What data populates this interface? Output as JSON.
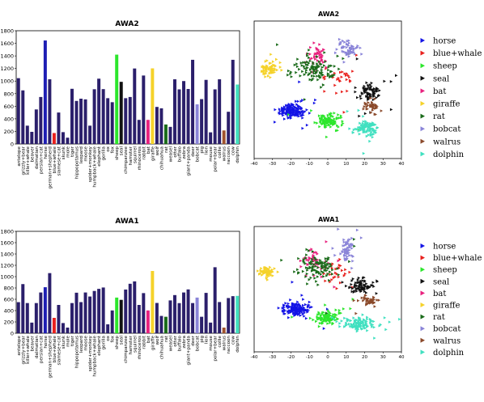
{
  "chart_data": [
    {
      "type": "bar",
      "title": "AWA2",
      "ylim": [
        0,
        1800
      ],
      "yticks": [
        0,
        200,
        400,
        600,
        800,
        1000,
        1200,
        1400,
        1600,
        1800
      ],
      "xlabel": "",
      "ylabel": "",
      "grid": false,
      "categories": [
        "antelope",
        "grizzly+bear",
        "killer+whale",
        "beaver",
        "dalmatian",
        "persian+cat",
        "horse",
        "german+shepherd",
        "blue+whale",
        "siamese+cat",
        "skunk",
        "mole",
        "tiger",
        "hippopotamus",
        "leopard",
        "moose",
        "spider+monkey",
        "humpback+whale",
        "elephant",
        "gorilla",
        "ox",
        "fox",
        "sheep",
        "seal",
        "chimpanzee",
        "hamster",
        "squirrel",
        "rhinoceros",
        "rabbit",
        "bat",
        "giraffe",
        "wolf",
        "chihuahua",
        "rat",
        "weasel",
        "otter",
        "buffalo",
        "zebra",
        "giant+panda",
        "deer",
        "bobcat",
        "pig",
        "lion",
        "mouse",
        "polar+bear",
        "collie",
        "walrus",
        "raccoon",
        "cow",
        "dolphin"
      ],
      "values": [
        1046,
        852,
        291,
        193,
        549,
        747,
        1645,
        1028,
        174,
        500,
        188,
        100,
        877,
        684,
        720,
        709,
        291,
        870,
        1038,
        872,
        728,
        664,
        1420,
        988,
        728,
        747,
        1200,
        383,
        1088,
        383,
        1202,
        589,
        567,
        310,
        272,
        1028,
        868,
        1000,
        874,
        1338,
        630,
        713,
        1019,
        185,
        868,
        1028,
        215,
        512,
        1338,
        945
      ],
      "bar_colors": [
        "#2b1f6b",
        "#2b1f6b",
        "#2b1f6b",
        "#2b1f6b",
        "#2b1f6b",
        "#2b1f6b",
        "#1e1eb4",
        "#2b1f6b",
        "#e8211e",
        "#2b1f6b",
        "#2b1f6b",
        "#2b1f6b",
        "#2b1f6b",
        "#2b1f6b",
        "#2b1f6b",
        "#2b1f6b",
        "#2b1f6b",
        "#2b1f6b",
        "#2b1f6b",
        "#2b1f6b",
        "#2b1f6b",
        "#2b1f6b",
        "#2ce62c",
        "#111111",
        "#2b1f6b",
        "#2b1f6b",
        "#2b1f6b",
        "#2b1f6b",
        "#2b1f6b",
        "#e8217e",
        "#f5d22a",
        "#2b1f6b",
        "#2b1f6b",
        "#1a6b1a",
        "#2b1f6b",
        "#2b1f6b",
        "#2b1f6b",
        "#2b1f6b",
        "#2b1f6b",
        "#2b1f6b",
        "#8a84d8",
        "#2b1f6b",
        "#2b1f6b",
        "#2b1f6b",
        "#2b1f6b",
        "#2b1f6b",
        "#a0522d",
        "#2b1f6b",
        "#2b1f6b",
        "#40e0c0"
      ]
    },
    {
      "type": "scatter",
      "title": "AWA2",
      "xlim": [
        -40,
        40
      ],
      "xticks": [
        -40,
        -30,
        -20,
        -10,
        0,
        10,
        20,
        30,
        40
      ],
      "ylim": [
        -40,
        40
      ],
      "legend_position": "right",
      "series": [
        {
          "name": "horse",
          "color": "#1414e6",
          "cx": -19,
          "cy": -12,
          "spread": [
            6,
            4
          ],
          "n": 150
        },
        {
          "name": "blue+whale",
          "color": "#e8211e",
          "cx": 6,
          "cy": 8,
          "spread": [
            9,
            7
          ],
          "n": 30
        },
        {
          "name": "sheep",
          "color": "#2ce62c",
          "cx": 1,
          "cy": -18,
          "spread": [
            5,
            3
          ],
          "n": 110
        },
        {
          "name": "seal",
          "color": "#111111",
          "cx": 23,
          "cy": -2,
          "spread": [
            5,
            4
          ],
          "n": 80
        },
        {
          "name": "bat",
          "color": "#e8217e",
          "cx": -6,
          "cy": 20,
          "spread": [
            6,
            6
          ],
          "n": 45
        },
        {
          "name": "giraffe",
          "color": "#f5d22a",
          "cx": -32,
          "cy": 12,
          "spread": [
            4,
            3
          ],
          "n": 70
        },
        {
          "name": "rat",
          "color": "#1a6b1a",
          "cx": -7,
          "cy": 12,
          "spread": [
            9,
            7
          ],
          "n": 110
        },
        {
          "name": "bobcat",
          "color": "#8a84d8",
          "cx": 11,
          "cy": 24,
          "spread": [
            5,
            4
          ],
          "n": 60
        },
        {
          "name": "walrus",
          "color": "#8b4a2b",
          "cx": 24,
          "cy": -10,
          "spread": [
            4,
            3
          ],
          "n": 40
        },
        {
          "name": "dolphin",
          "color": "#40e0c0",
          "cx": 21,
          "cy": -22,
          "spread": [
            6,
            4
          ],
          "n": 110
        }
      ]
    },
    {
      "type": "bar",
      "title": "AWA1",
      "ylim": [
        0,
        1800
      ],
      "yticks": [
        0,
        200,
        400,
        600,
        800,
        1000,
        1200,
        1400,
        1600,
        1800
      ],
      "xlabel": "",
      "ylabel": "",
      "grid": false,
      "categories": [
        "antelope",
        "grizzly+bear",
        "killer+whale",
        "beaver",
        "dalmatian",
        "persian+cat",
        "horse",
        "german+shepherd",
        "blue+whale",
        "siamese+cat",
        "skunk",
        "mole",
        "tiger",
        "hippopotamus",
        "leopard",
        "moose",
        "spider+monkey",
        "humpback+whale",
        "elephant",
        "gorilla",
        "ox",
        "fox",
        "sheep",
        "seal",
        "chimpanzee",
        "hamster",
        "squirrel",
        "rhinoceros",
        "rabbit",
        "bat",
        "giraffe",
        "wolf",
        "chihuahua",
        "rat",
        "weasel",
        "otter",
        "buffalo",
        "zebra",
        "giant+panda",
        "deer",
        "bobcat",
        "pig",
        "lion",
        "mouse",
        "polar+bear",
        "collie",
        "walrus",
        "raccoon",
        "cow",
        "dolphin"
      ],
      "values": [
        549,
        868,
        533,
        188,
        533,
        720,
        813,
        1062,
        272,
        500,
        180,
        100,
        533,
        716,
        550,
        720,
        649,
        747,
        784,
        808,
        158,
        403,
        630,
        590,
        772,
        874,
        916,
        500,
        709,
        403,
        1100,
        535,
        306,
        291,
        580,
        674,
        532,
        720,
        774,
        533,
        630,
        291,
        713,
        188,
        1166,
        551,
        100,
        622,
        655,
        660
      ],
      "bar_colors": [
        "#2b1f6b",
        "#2b1f6b",
        "#2b1f6b",
        "#2b1f6b",
        "#2b1f6b",
        "#2b1f6b",
        "#1e1eb4",
        "#2b1f6b",
        "#e8211e",
        "#2b1f6b",
        "#2b1f6b",
        "#2b1f6b",
        "#2b1f6b",
        "#2b1f6b",
        "#2b1f6b",
        "#2b1f6b",
        "#2b1f6b",
        "#2b1f6b",
        "#2b1f6b",
        "#2b1f6b",
        "#2b1f6b",
        "#2b1f6b",
        "#2ce62c",
        "#111111",
        "#2b1f6b",
        "#2b1f6b",
        "#2b1f6b",
        "#2b1f6b",
        "#2b1f6b",
        "#e8217e",
        "#f5d22a",
        "#2b1f6b",
        "#2b1f6b",
        "#1a6b1a",
        "#2b1f6b",
        "#2b1f6b",
        "#2b1f6b",
        "#2b1f6b",
        "#2b1f6b",
        "#2b1f6b",
        "#8a84d8",
        "#2b1f6b",
        "#2b1f6b",
        "#2b1f6b",
        "#2b1f6b",
        "#2b1f6b",
        "#a0522d",
        "#2b1f6b",
        "#2b1f6b",
        "#40e0c0"
      ]
    },
    {
      "type": "scatter",
      "title": "AWA1",
      "xlim": [
        -40,
        40
      ],
      "xticks": [
        -40,
        -30,
        -20,
        -10,
        0,
        10,
        20,
        30,
        40
      ],
      "ylim": [
        -40,
        40
      ],
      "legend_position": "right",
      "series": [
        {
          "name": "horse",
          "color": "#1414e6",
          "cx": -17,
          "cy": -13,
          "spread": [
            6,
            4
          ],
          "n": 150
        },
        {
          "name": "blue+whale",
          "color": "#e8211e",
          "cx": 5,
          "cy": 10,
          "spread": [
            9,
            7
          ],
          "n": 30
        },
        {
          "name": "sheep",
          "color": "#2ce62c",
          "cx": 0,
          "cy": -18,
          "spread": [
            6,
            3
          ],
          "n": 110
        },
        {
          "name": "seal",
          "color": "#111111",
          "cx": 18,
          "cy": 2,
          "spread": [
            6,
            4
          ],
          "n": 80
        },
        {
          "name": "bat",
          "color": "#e8217e",
          "cx": -7,
          "cy": 18,
          "spread": [
            6,
            6
          ],
          "n": 45
        },
        {
          "name": "giraffe",
          "color": "#f5d22a",
          "cx": -33,
          "cy": 11,
          "spread": [
            3,
            3
          ],
          "n": 70
        },
        {
          "name": "rat",
          "color": "#1a6b1a",
          "cx": -6,
          "cy": 14,
          "spread": [
            9,
            8
          ],
          "n": 110
        },
        {
          "name": "bobcat",
          "color": "#8a84d8",
          "cx": 11,
          "cy": 24,
          "spread": [
            3,
            6
          ],
          "n": 60
        },
        {
          "name": "walrus",
          "color": "#8b4a2b",
          "cx": 22,
          "cy": -7,
          "spread": [
            4,
            3
          ],
          "n": 40
        },
        {
          "name": "dolphin",
          "color": "#40e0c0",
          "cx": 17,
          "cy": -22,
          "spread": [
            8,
            4
          ],
          "n": 110
        }
      ]
    }
  ]
}
